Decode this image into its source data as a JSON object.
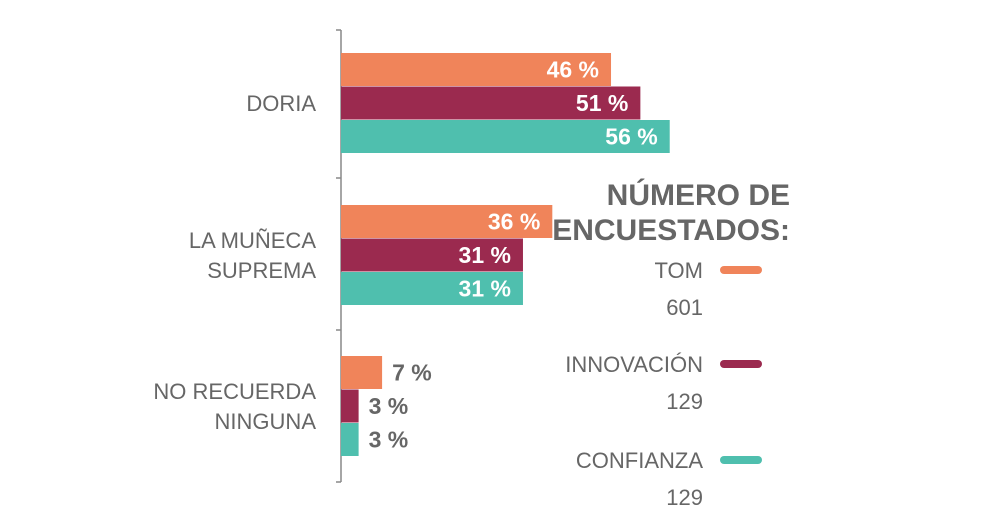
{
  "chart_data": {
    "type": "bar",
    "orientation": "horizontal",
    "categories": [
      [
        "DORIA"
      ],
      [
        "LA MUÑECA",
        "SUPREMA"
      ],
      [
        "NO RECUERDA",
        "NINGUNA"
      ]
    ],
    "series": [
      {
        "name": "TOM",
        "count": "601",
        "color": "#F0845A",
        "values": [
          46,
          36,
          7
        ]
      },
      {
        "name": "INNOVACIÓN",
        "count": "129",
        "color": "#9B2A4F",
        "values": [
          51,
          31,
          3
        ]
      },
      {
        "name": "CONFIANZA",
        "count": "129",
        "color": "#4FBFAE",
        "values": [
          56,
          31,
          3
        ]
      }
    ],
    "value_suffix": " %",
    "legend_title": [
      "NÚMERO DE",
      "ENCUESTADOS:"
    ],
    "legend_placement": "right",
    "xlim": [
      0,
      56
    ],
    "grid": false
  }
}
